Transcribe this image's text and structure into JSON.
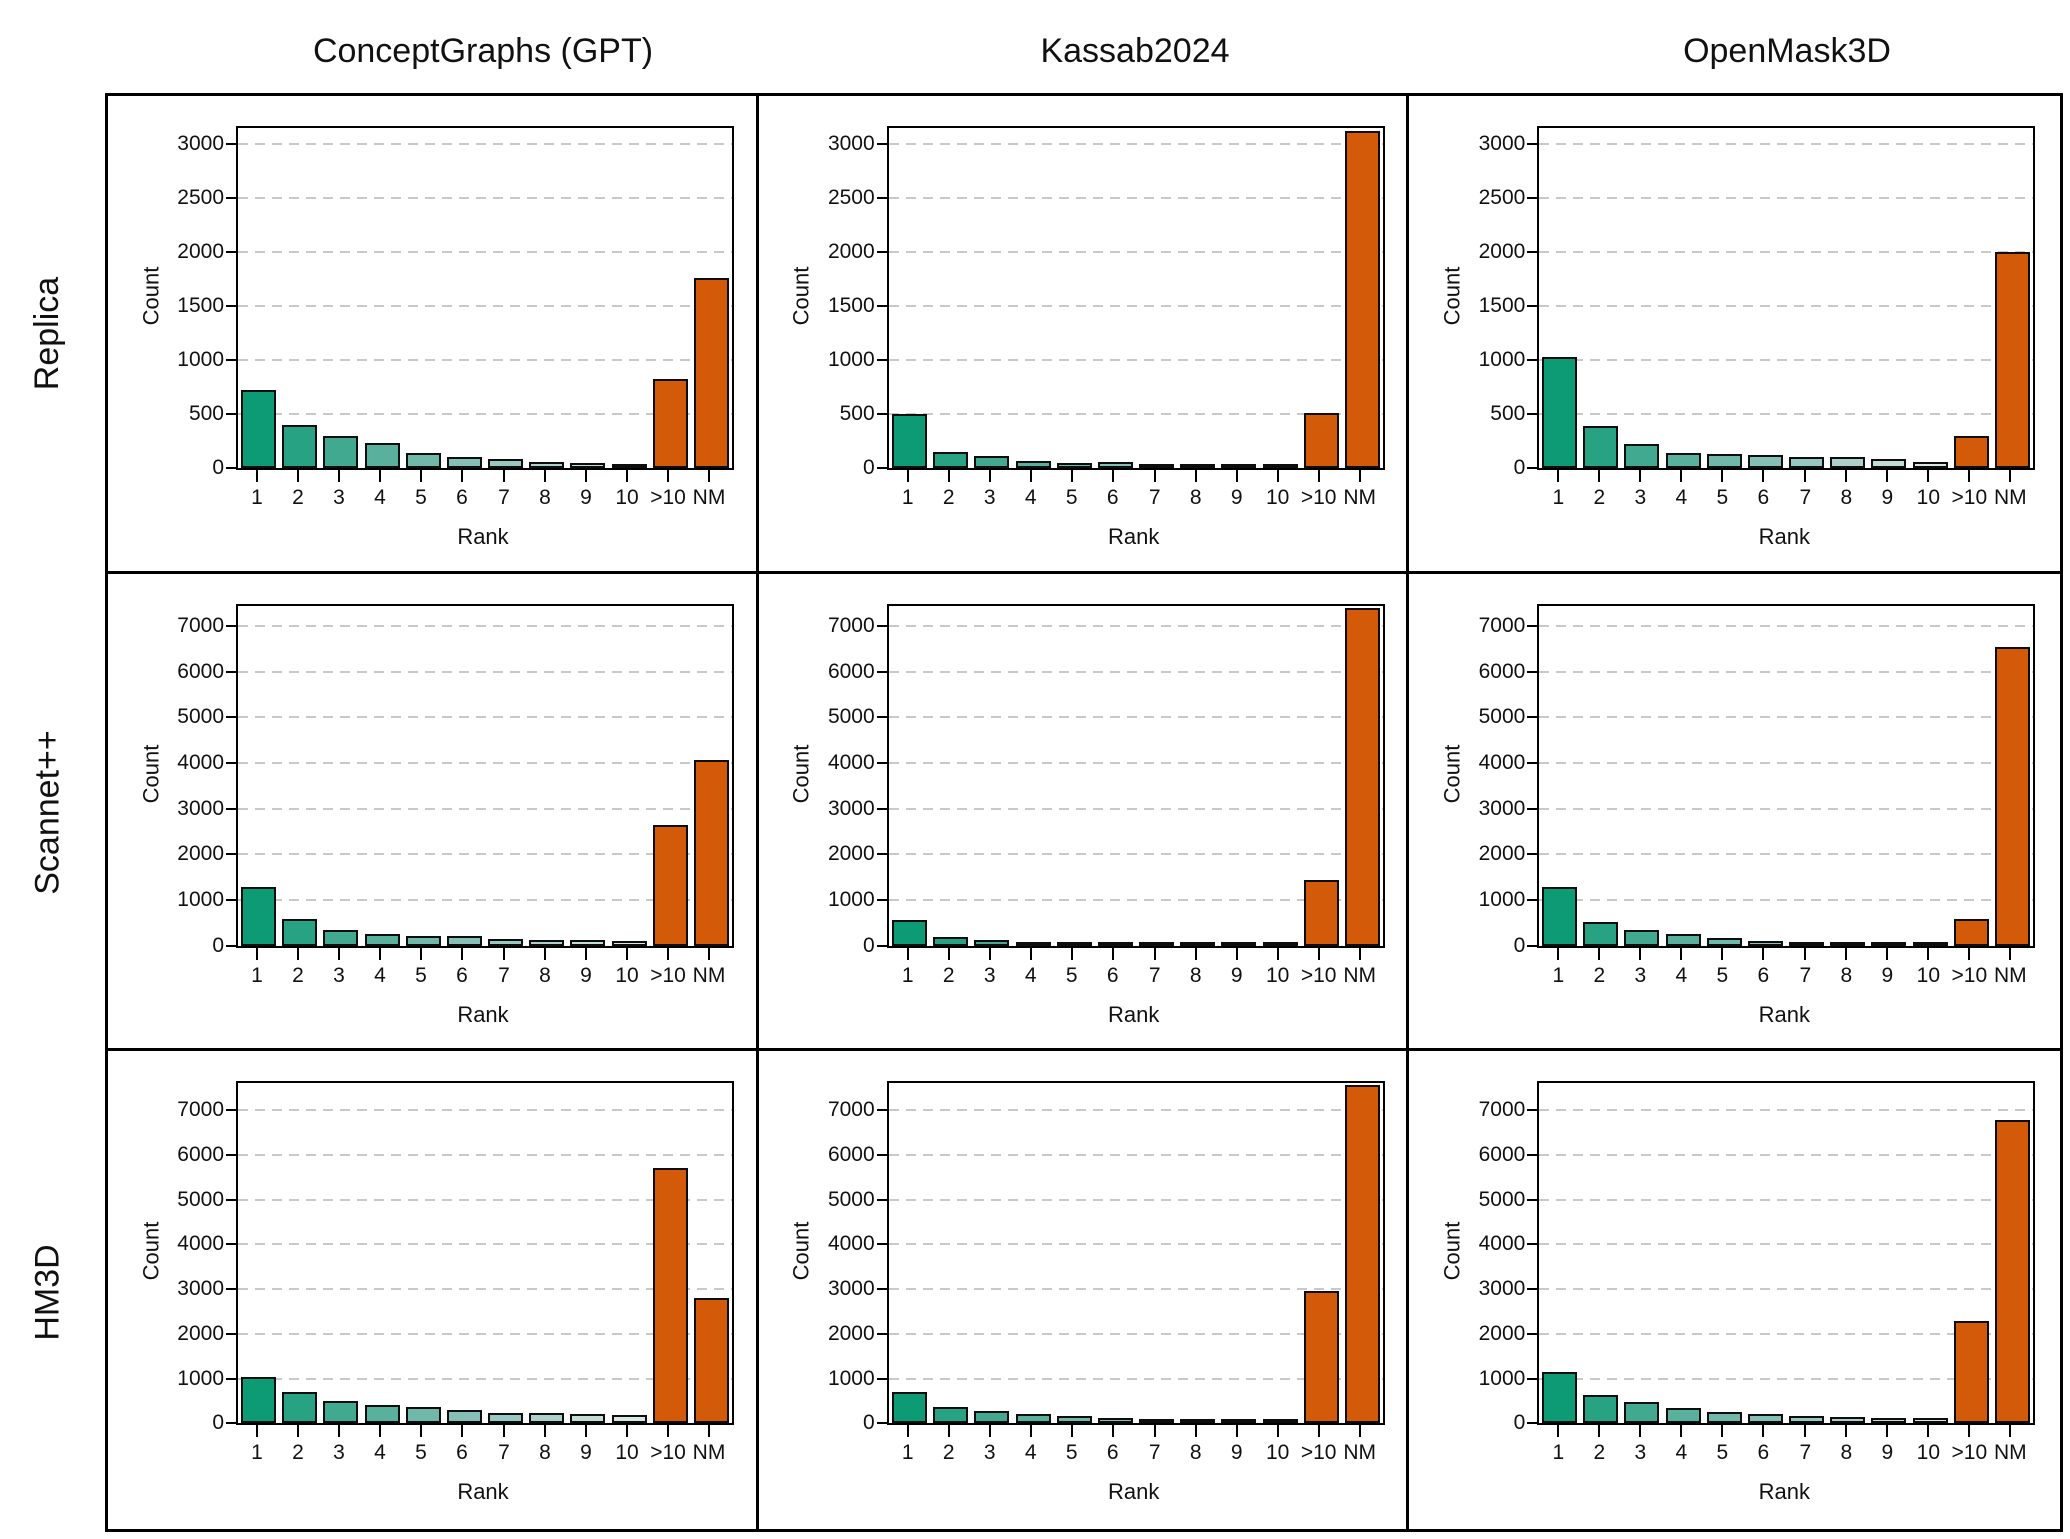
{
  "figure": {
    "col_titles": [
      "ConceptGraphs (GPT)",
      "Kassab2024",
      "OpenMask3D"
    ],
    "row_labels": [
      "Replica",
      "Scannet++",
      "HM3D"
    ],
    "xlabel": "Rank",
    "ylabel": "Count",
    "categories": [
      "1",
      "2",
      "3",
      "4",
      "5",
      "6",
      "7",
      "8",
      "9",
      "10",
      ">10",
      "NM"
    ],
    "colors": {
      "green_ramp": [
        "#0d9b76",
        "#27a283",
        "#40a990",
        "#58b09d",
        "#70b8aa",
        "#85bfb6",
        "#99c7c1",
        "#aed0cb",
        "#c3dcd4",
        "#d9e9e1"
      ],
      "orange": "#d25a09",
      "bar_edge": "#0d0d0d",
      "grid": "#c9c9c9",
      "text": "#111111"
    }
  },
  "chart_data": [
    {
      "type": "bar",
      "row": "Replica",
      "col": "ConceptGraphs (GPT)",
      "categories": [
        "1",
        "2",
        "3",
        "4",
        "5",
        "6",
        "7",
        "8",
        "9",
        "10",
        ">10",
        "NM"
      ],
      "values": [
        720,
        400,
        300,
        230,
        135,
        100,
        80,
        55,
        50,
        30,
        820,
        1760
      ],
      "xlabel": "Rank",
      "ylabel": "Count",
      "yticks": [
        0,
        500,
        1000,
        1500,
        2000,
        2500,
        3000
      ],
      "ylim": [
        0,
        3150
      ],
      "grid": "dashed-horizontal",
      "legend": "none"
    },
    {
      "type": "bar",
      "row": "Replica",
      "col": "Kassab2024",
      "categories": [
        "1",
        "2",
        "3",
        "4",
        "5",
        "6",
        "7",
        "8",
        "9",
        "10",
        ">10",
        "NM"
      ],
      "values": [
        500,
        150,
        110,
        65,
        50,
        55,
        25,
        25,
        30,
        10,
        510,
        3120
      ],
      "xlabel": "Rank",
      "ylabel": "Count",
      "yticks": [
        0,
        500,
        1000,
        1500,
        2000,
        2500,
        3000
      ],
      "ylim": [
        0,
        3150
      ],
      "grid": "dashed-horizontal",
      "legend": "none"
    },
    {
      "type": "bar",
      "row": "Replica",
      "col": "OpenMask3D",
      "categories": [
        "1",
        "2",
        "3",
        "4",
        "5",
        "6",
        "7",
        "8",
        "9",
        "10",
        ">10",
        "NM"
      ],
      "values": [
        1030,
        390,
        225,
        140,
        130,
        120,
        105,
        100,
        85,
        55,
        300,
        2000
      ],
      "xlabel": "Rank",
      "ylabel": "Count",
      "yticks": [
        0,
        500,
        1000,
        1500,
        2000,
        2500,
        3000
      ],
      "ylim": [
        0,
        3150
      ],
      "grid": "dashed-horizontal",
      "legend": "none"
    },
    {
      "type": "bar",
      "row": "Scannet++",
      "col": "ConceptGraphs (GPT)",
      "categories": [
        "1",
        "2",
        "3",
        "4",
        "5",
        "6",
        "7",
        "8",
        "9",
        "10",
        ">10",
        "NM"
      ],
      "values": [
        1300,
        600,
        360,
        260,
        230,
        210,
        160,
        140,
        130,
        100,
        2650,
        4080
      ],
      "xlabel": "Rank",
      "ylabel": "Count",
      "yticks": [
        0,
        1000,
        2000,
        3000,
        4000,
        5000,
        6000,
        7000
      ],
      "ylim": [
        0,
        7450
      ],
      "grid": "dashed-horizontal",
      "legend": "none"
    },
    {
      "type": "bar",
      "row": "Scannet++",
      "col": "Kassab2024",
      "categories": [
        "1",
        "2",
        "3",
        "4",
        "5",
        "6",
        "7",
        "8",
        "9",
        "10",
        ">10",
        "NM"
      ],
      "values": [
        560,
        200,
        130,
        85,
        65,
        65,
        40,
        40,
        45,
        25,
        1450,
        7400
      ],
      "xlabel": "Rank",
      "ylabel": "Count",
      "yticks": [
        0,
        1000,
        2000,
        3000,
        4000,
        5000,
        6000,
        7000
      ],
      "ylim": [
        0,
        7450
      ],
      "grid": "dashed-horizontal",
      "legend": "none"
    },
    {
      "type": "bar",
      "row": "Scannet++",
      "col": "OpenMask3D",
      "categories": [
        "1",
        "2",
        "3",
        "4",
        "5",
        "6",
        "7",
        "8",
        "9",
        "10",
        ">10",
        "NM"
      ],
      "values": [
        1300,
        520,
        340,
        260,
        170,
        110,
        65,
        65,
        40,
        70,
        600,
        6550
      ],
      "xlabel": "Rank",
      "ylabel": "Count",
      "yticks": [
        0,
        1000,
        2000,
        3000,
        4000,
        5000,
        6000,
        7000
      ],
      "ylim": [
        0,
        7450
      ],
      "grid": "dashed-horizontal",
      "legend": "none"
    },
    {
      "type": "bar",
      "row": "HM3D",
      "col": "ConceptGraphs (GPT)",
      "categories": [
        "1",
        "2",
        "3",
        "4",
        "5",
        "6",
        "7",
        "8",
        "9",
        "10",
        ">10",
        "NM"
      ],
      "values": [
        1030,
        700,
        500,
        400,
        360,
        280,
        230,
        225,
        200,
        175,
        5700,
        2800
      ],
      "xlabel": "Rank",
      "ylabel": "Count",
      "yticks": [
        0,
        1000,
        2000,
        3000,
        4000,
        5000,
        6000,
        7000
      ],
      "ylim": [
        0,
        7600
      ],
      "grid": "dashed-horizontal",
      "legend": "none"
    },
    {
      "type": "bar",
      "row": "HM3D",
      "col": "Kassab2024",
      "categories": [
        "1",
        "2",
        "3",
        "4",
        "5",
        "6",
        "7",
        "8",
        "9",
        "10",
        ">10",
        "NM"
      ],
      "values": [
        700,
        350,
        270,
        200,
        150,
        110,
        90,
        90,
        60,
        70,
        2950,
        7550
      ],
      "xlabel": "Rank",
      "ylabel": "Count",
      "yticks": [
        0,
        1000,
        2000,
        3000,
        4000,
        5000,
        6000,
        7000
      ],
      "ylim": [
        0,
        7600
      ],
      "grid": "dashed-horizontal",
      "legend": "none"
    },
    {
      "type": "bar",
      "row": "HM3D",
      "col": "OpenMask3D",
      "categories": [
        "1",
        "2",
        "3",
        "4",
        "5",
        "6",
        "7",
        "8",
        "9",
        "10",
        ">10",
        "NM"
      ],
      "values": [
        1150,
        620,
        470,
        340,
        240,
        200,
        160,
        130,
        110,
        110,
        2280,
        6780
      ],
      "xlabel": "Rank",
      "ylabel": "Count",
      "yticks": [
        0,
        1000,
        2000,
        3000,
        4000,
        5000,
        6000,
        7000
      ],
      "ylim": [
        0,
        7600
      ],
      "grid": "dashed-horizontal",
      "legend": "none"
    }
  ]
}
